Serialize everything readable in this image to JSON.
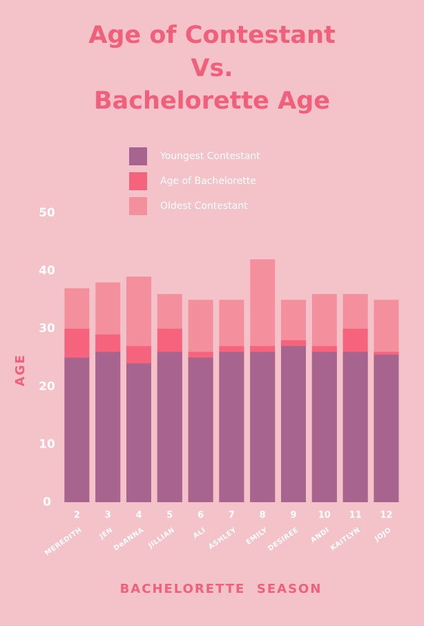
{
  "chart_data": {
    "type": "overlapping_bar",
    "title": [
      "Age of Contestant",
      "Vs.",
      "Bachelorette Age"
    ],
    "categories": [
      "2",
      "3",
      "4",
      "5",
      "6",
      "7",
      "8",
      "9",
      "10",
      "11",
      "12"
    ],
    "category_names": [
      "MEREDITH",
      "JEN",
      "DeANNA",
      "JILLIAN",
      "ALI",
      "ASHLEY",
      "EMILY",
      "DESIREE",
      "ANDI",
      "KAITLYN",
      "JOJO"
    ],
    "series": [
      {
        "name": "Youngest Contestant",
        "color": "#a6648f",
        "values": [
          25,
          26,
          24,
          26,
          25,
          26,
          26,
          27,
          26,
          26,
          25.5
        ]
      },
      {
        "name": "Age of Bachelorette",
        "color": "#f5647c",
        "values": [
          30,
          29,
          27,
          30,
          26,
          27,
          27,
          28,
          27,
          30,
          26
        ]
      },
      {
        "name": "Oldest Contestant",
        "color": "#f4909e",
        "values": [
          37,
          38,
          39,
          36,
          35,
          35,
          42,
          35,
          36,
          36,
          35
        ]
      }
    ],
    "ylim": [
      0,
      50
    ],
    "yticks": [
      0,
      10,
      20,
      30,
      40,
      50
    ],
    "ylabel": "AGE",
    "xlabel": "BACHELORETTE  SEASON",
    "grid": false
  }
}
